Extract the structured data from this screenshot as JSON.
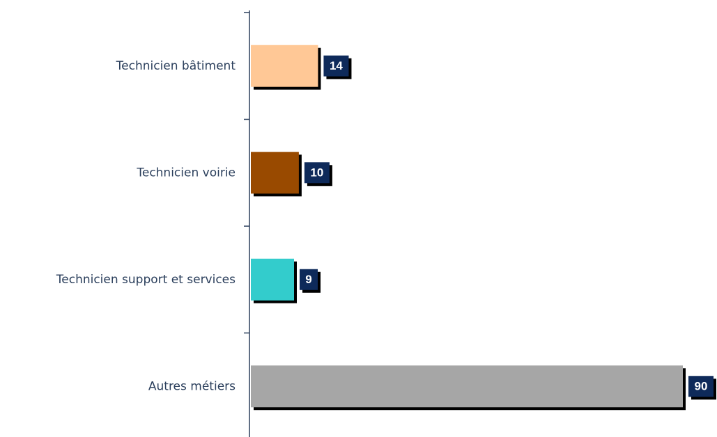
{
  "chart_data": {
    "type": "barh",
    "categories": [
      "Technicien bâtiment",
      "Technicien voirie",
      "Technicien support et services",
      "Autres métiers"
    ],
    "values": [
      14,
      10,
      9,
      90
    ],
    "colors": [
      "#ffc896",
      "#994a00",
      "#33cccc",
      "#a6a6a6"
    ]
  }
}
